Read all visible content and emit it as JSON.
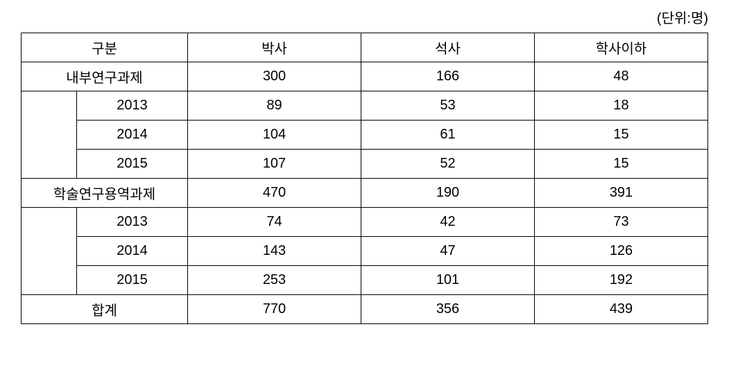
{
  "unit_label": "(단위:명)",
  "table": {
    "header": {
      "category": "구분",
      "col1": "박사",
      "col2": "석사",
      "col3": "학사이하"
    },
    "section1": {
      "label": "내부연구과제",
      "total": {
        "c1": "300",
        "c2": "166",
        "c3": "48"
      },
      "rows": [
        {
          "year": "2013",
          "c1": "89",
          "c2": "53",
          "c3": "18"
        },
        {
          "year": "2014",
          "c1": "104",
          "c2": "61",
          "c3": "15"
        },
        {
          "year": "2015",
          "c1": "107",
          "c2": "52",
          "c3": "15"
        }
      ]
    },
    "section2": {
      "label": "학술연구용역과제",
      "total": {
        "c1": "470",
        "c2": "190",
        "c3": "391"
      },
      "rows": [
        {
          "year": "2013",
          "c1": "74",
          "c2": "42",
          "c3": "73"
        },
        {
          "year": "2014",
          "c1": "143",
          "c2": "47",
          "c3": "126"
        },
        {
          "year": "2015",
          "c1": "253",
          "c2": "101",
          "c3": "192"
        }
      ]
    },
    "footer": {
      "label": "합계",
      "c1": "770",
      "c2": "356",
      "c3": "439"
    }
  }
}
